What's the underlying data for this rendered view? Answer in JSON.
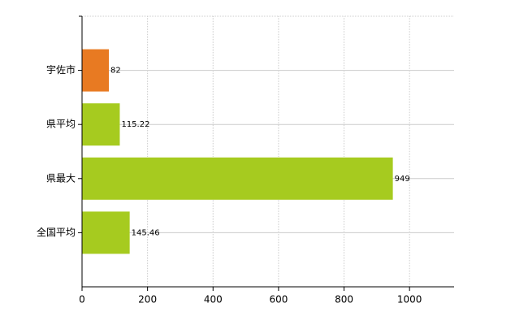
{
  "chart_data": {
    "type": "bar",
    "orientation": "horizontal",
    "categories": [
      "宇佐市",
      "県平均",
      "県最大",
      "全国平均"
    ],
    "values": [
      82,
      115.22,
      949,
      145.46
    ],
    "colors": [
      "#e87a22",
      "#a6cb1f",
      "#a6cb1f",
      "#a6cb1f"
    ],
    "xlim": [
      0,
      1136
    ],
    "xticks": [
      0,
      200,
      400,
      600,
      800,
      1000
    ],
    "grid": true
  }
}
